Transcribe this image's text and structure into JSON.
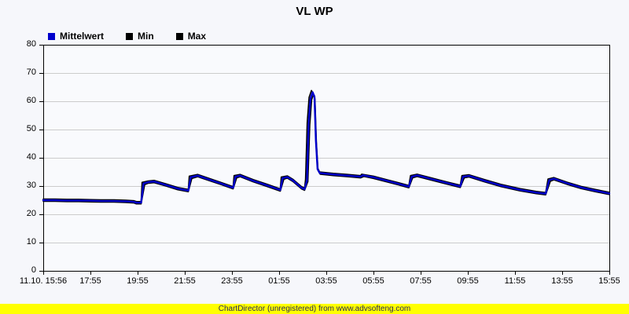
{
  "header": {
    "title": "VL WP"
  },
  "legend": {
    "items": [
      {
        "label": "Mittelwert",
        "color": "#0000CC"
      },
      {
        "label": "Min",
        "color": "#000000"
      },
      {
        "label": "Max",
        "color": "#000000"
      }
    ]
  },
  "footer": {
    "text": "ChartDirector (unregistered) from www.advsofteng.com",
    "background": "#FFFF00"
  },
  "chart_data": {
    "type": "line",
    "title": "VL WP",
    "xlabel": "",
    "ylabel": "",
    "x_axis": {
      "labels": [
        "11.10. 15:56",
        "17:55",
        "19:55",
        "21:55",
        "23:55",
        "01:55",
        "03:55",
        "05:55",
        "07:55",
        "09:55",
        "11:55",
        "13:55",
        "15:55"
      ],
      "hours_per_tick": 2,
      "total_hours": 24
    },
    "y_axis": {
      "min": 0,
      "max": 80,
      "step": 10,
      "labels": [
        "0",
        "10",
        "20",
        "30",
        "40",
        "50",
        "60",
        "70",
        "80"
      ]
    },
    "grid": {
      "horizontal": true,
      "vertical": false,
      "color": "#CCCCCC"
    },
    "plot_background": "#f9fafd",
    "axis_color": "#000000",
    "series": [
      {
        "name": "Max",
        "color": "#000000",
        "width": 1.6,
        "points": [
          [
            0,
            25.4
          ],
          [
            0.5,
            25.4
          ],
          [
            1,
            25.3
          ],
          [
            1.5,
            25.3
          ],
          [
            2,
            25.2
          ],
          [
            2.5,
            25.1
          ],
          [
            3,
            25.1
          ],
          [
            3.5,
            25.0
          ],
          [
            3.85,
            24.8
          ],
          [
            3.95,
            24.5
          ],
          [
            4.15,
            24.5
          ],
          [
            4.19,
            31.3
          ],
          [
            4.45,
            31.8
          ],
          [
            4.7,
            32.0
          ],
          [
            5.2,
            30.8
          ],
          [
            5.7,
            29.5
          ],
          [
            6.15,
            28.8
          ],
          [
            6.19,
            33.5
          ],
          [
            6.55,
            34.1
          ],
          [
            7.0,
            32.8
          ],
          [
            7.5,
            31.4
          ],
          [
            8.05,
            29.8
          ],
          [
            8.09,
            33.7
          ],
          [
            8.35,
            34.1
          ],
          [
            8.9,
            32.3
          ],
          [
            9.5,
            30.6
          ],
          [
            10.05,
            29.0
          ],
          [
            10.09,
            33.2
          ],
          [
            10.35,
            33.6
          ],
          [
            10.6,
            32.3
          ],
          [
            10.95,
            29.8
          ],
          [
            11.08,
            29.3
          ],
          [
            11.12,
            32.4
          ],
          [
            11.19,
            52.4
          ],
          [
            11.27,
            61.4
          ],
          [
            11.37,
            63.8
          ],
          [
            11.5,
            61.9
          ],
          [
            11.56,
            46.4
          ],
          [
            11.63,
            36.4
          ],
          [
            11.72,
            35.0
          ],
          [
            12.3,
            34.5
          ],
          [
            12.9,
            34.1
          ],
          [
            13.45,
            33.7
          ],
          [
            13.5,
            34.2
          ],
          [
            14.0,
            33.5
          ],
          [
            14.6,
            32.2
          ],
          [
            15.1,
            31.1
          ],
          [
            15.5,
            30.2
          ],
          [
            15.57,
            33.7
          ],
          [
            15.85,
            34.2
          ],
          [
            16.4,
            33.0
          ],
          [
            17.1,
            31.5
          ],
          [
            17.68,
            30.3
          ],
          [
            17.75,
            33.7
          ],
          [
            18.05,
            34.0
          ],
          [
            18.7,
            32.3
          ],
          [
            19.4,
            30.6
          ],
          [
            20.2,
            29.1
          ],
          [
            20.9,
            28.1
          ],
          [
            21.3,
            27.7
          ],
          [
            21.4,
            32.5
          ],
          [
            21.65,
            33.0
          ],
          [
            22.2,
            31.4
          ],
          [
            22.8,
            29.9
          ],
          [
            23.4,
            28.8
          ],
          [
            24,
            27.8
          ]
        ]
      },
      {
        "name": "Min",
        "color": "#000000",
        "width": 1.6,
        "points": [
          [
            0,
            24.6
          ],
          [
            0.5,
            24.6
          ],
          [
            1,
            24.5
          ],
          [
            1.5,
            24.5
          ],
          [
            2,
            24.4
          ],
          [
            2.5,
            24.3
          ],
          [
            3,
            24.3
          ],
          [
            3.5,
            24.2
          ],
          [
            3.85,
            24.0
          ],
          [
            3.95,
            23.7
          ],
          [
            4.15,
            23.7
          ],
          [
            4.3,
            30.5
          ],
          [
            4.45,
            31.0
          ],
          [
            4.7,
            31.2
          ],
          [
            5.2,
            30.0
          ],
          [
            5.7,
            28.7
          ],
          [
            6.15,
            28.0
          ],
          [
            6.3,
            32.7
          ],
          [
            6.55,
            33.3
          ],
          [
            7.0,
            32.0
          ],
          [
            7.5,
            30.6
          ],
          [
            8.05,
            29.0
          ],
          [
            8.2,
            32.9
          ],
          [
            8.35,
            33.3
          ],
          [
            8.9,
            31.5
          ],
          [
            9.5,
            29.8
          ],
          [
            10.05,
            28.2
          ],
          [
            10.2,
            32.4
          ],
          [
            10.35,
            32.8
          ],
          [
            10.6,
            31.5
          ],
          [
            10.95,
            29.0
          ],
          [
            11.08,
            28.5
          ],
          [
            11.22,
            31.6
          ],
          [
            11.3,
            51.6
          ],
          [
            11.38,
            60.6
          ],
          [
            11.46,
            62.4
          ],
          [
            11.52,
            60.8
          ],
          [
            11.58,
            45.6
          ],
          [
            11.65,
            35.6
          ],
          [
            11.74,
            34.2
          ],
          [
            12.3,
            33.7
          ],
          [
            12.9,
            33.3
          ],
          [
            13.45,
            32.9
          ],
          [
            13.6,
            33.4
          ],
          [
            14.0,
            32.7
          ],
          [
            14.6,
            31.4
          ],
          [
            15.1,
            30.3
          ],
          [
            15.5,
            29.4
          ],
          [
            15.66,
            32.9
          ],
          [
            15.85,
            33.4
          ],
          [
            16.4,
            32.2
          ],
          [
            17.1,
            30.7
          ],
          [
            17.68,
            29.5
          ],
          [
            17.85,
            32.9
          ],
          [
            18.05,
            33.2
          ],
          [
            18.7,
            31.5
          ],
          [
            19.4,
            29.8
          ],
          [
            20.2,
            28.3
          ],
          [
            20.9,
            27.3
          ],
          [
            21.3,
            26.9
          ],
          [
            21.5,
            31.7
          ],
          [
            21.65,
            32.2
          ],
          [
            22.2,
            30.6
          ],
          [
            22.8,
            29.1
          ],
          [
            23.4,
            28.0
          ],
          [
            24,
            27.0
          ]
        ]
      },
      {
        "name": "Mittelwert",
        "color": "#0000CC",
        "width": 2.4,
        "points": [
          [
            0,
            25.0
          ],
          [
            0.5,
            25.0
          ],
          [
            1,
            24.9
          ],
          [
            1.5,
            24.9
          ],
          [
            2,
            24.8
          ],
          [
            2.5,
            24.7
          ],
          [
            3,
            24.7
          ],
          [
            3.5,
            24.6
          ],
          [
            3.85,
            24.4
          ],
          [
            3.95,
            24.1
          ],
          [
            4.15,
            24.1
          ],
          [
            4.25,
            30.9
          ],
          [
            4.45,
            31.4
          ],
          [
            4.7,
            31.6
          ],
          [
            5.2,
            30.4
          ],
          [
            5.7,
            29.1
          ],
          [
            6.15,
            28.4
          ],
          [
            6.25,
            33.1
          ],
          [
            6.55,
            33.7
          ],
          [
            7.0,
            32.4
          ],
          [
            7.5,
            31.0
          ],
          [
            8.05,
            29.4
          ],
          [
            8.15,
            33.3
          ],
          [
            8.35,
            33.7
          ],
          [
            8.9,
            31.9
          ],
          [
            9.5,
            30.2
          ],
          [
            10.05,
            28.6
          ],
          [
            10.15,
            32.8
          ],
          [
            10.35,
            33.2
          ],
          [
            10.6,
            31.9
          ],
          [
            10.95,
            29.4
          ],
          [
            11.08,
            28.9
          ],
          [
            11.18,
            32.0
          ],
          [
            11.25,
            52.0
          ],
          [
            11.33,
            61.0
          ],
          [
            11.42,
            63.2
          ],
          [
            11.5,
            61.5
          ],
          [
            11.56,
            46.0
          ],
          [
            11.63,
            36.0
          ],
          [
            11.72,
            34.6
          ],
          [
            12.3,
            34.1
          ],
          [
            12.9,
            33.7
          ],
          [
            13.45,
            33.3
          ],
          [
            13.55,
            33.8
          ],
          [
            14.0,
            33.1
          ],
          [
            14.6,
            31.8
          ],
          [
            15.1,
            30.7
          ],
          [
            15.5,
            29.8
          ],
          [
            15.62,
            33.3
          ],
          [
            15.85,
            33.8
          ],
          [
            16.4,
            32.6
          ],
          [
            17.1,
            31.1
          ],
          [
            17.68,
            29.9
          ],
          [
            17.8,
            33.3
          ],
          [
            18.05,
            33.6
          ],
          [
            18.7,
            31.9
          ],
          [
            19.4,
            30.2
          ],
          [
            20.2,
            28.7
          ],
          [
            20.9,
            27.7
          ],
          [
            21.3,
            27.3
          ],
          [
            21.45,
            32.1
          ],
          [
            21.65,
            32.6
          ],
          [
            22.2,
            31.0
          ],
          [
            22.8,
            29.5
          ],
          [
            23.4,
            28.4
          ],
          [
            24,
            27.4
          ]
        ]
      }
    ],
    "legend_position": "top-left"
  }
}
